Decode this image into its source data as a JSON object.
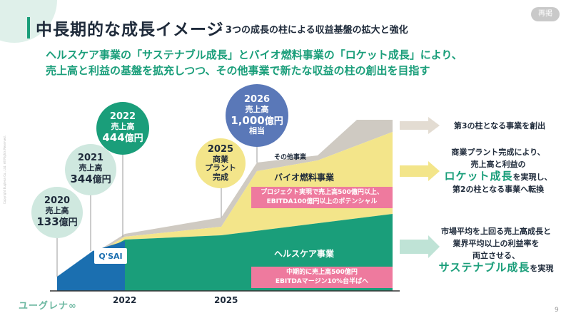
{
  "header": {
    "title": "中長期的な成長イメージ",
    "subtitle": "- 3つの成長の柱による収益基盤の拡大と強化",
    "tag": "再掲"
  },
  "lead": {
    "line1": "ヘルスケア事業の「サステナブル成長」とバイオ燃料事業の「ロケット成長」により、",
    "line2": "売上高と利益の基盤を拡充しつつ、その他事業で新たな収益の柱の創出を目指す"
  },
  "bubbles": [
    {
      "year": "2020",
      "label": "売上高",
      "amount": "133",
      "unit": "億円",
      "color": "#cfe8df"
    },
    {
      "year": "2021",
      "label": "売上高",
      "amount": "344",
      "unit": "億円",
      "color": "#cfe8df"
    },
    {
      "year": "2022",
      "label": "売上高",
      "amount": "444",
      "unit": "億円",
      "color": "#1a9e7a"
    },
    {
      "year": "2025",
      "label1": "商業",
      "label2": "プラント",
      "label3": "完成",
      "color": "#f3e58a"
    },
    {
      "year": "2026",
      "label": "売上高",
      "amount": "1,000",
      "unit": "億円",
      "suffix": "相当",
      "color": "#5a78b8"
    }
  ],
  "axis": {
    "x_2022": "2022",
    "x_2025": "2025"
  },
  "bands": {
    "other": "その他事業",
    "bio": "バイオ燃料事業",
    "health": "ヘルスケア事業",
    "qsai": "Q'SAI"
  },
  "pink_boxes": {
    "bio_line1": "プロジェクト実現で売上高500億円以上、",
    "bio_line2": "EBITDA100億円以上のポテンシャル",
    "health_line1": "中期的に売上高500億円",
    "health_line2": "EBITDAマージン10%台半ばへ"
  },
  "right": {
    "other": "第3の柱となる事業を創出",
    "bio_line1": "商業プラント完成により、",
    "bio_line2": "売上高と利益の",
    "bio_big": "ロケット成長",
    "bio_line3": "を実現し、",
    "bio_line4": "第2の柱となる事業へ転換",
    "health_line1": "市場平均を上回る売上高成長と",
    "health_line2": "業界平均以上の利益率を",
    "health_line3": "両立させる、",
    "health_big": "サステナブル成長",
    "health_line4": "を実現"
  },
  "footer": {
    "logo": "ユーグレナ∞",
    "page": "9",
    "copyright": "Copyright Euglena Co., Ltd. All Rights Reserved."
  },
  "colors": {
    "green": "#1a9e7a",
    "yellow": "#f3e58a",
    "gray": "#cfcac2",
    "pink": "#ee7a9e",
    "blue": "#1b6fb0"
  }
}
